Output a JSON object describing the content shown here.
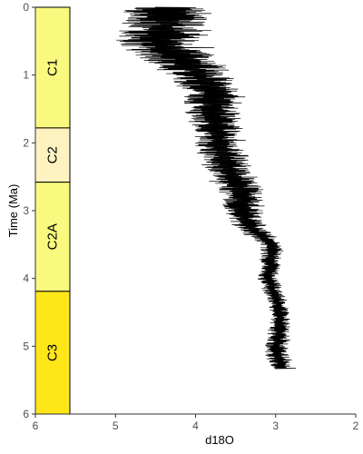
{
  "chart_data": {
    "type": "line",
    "title": "",
    "xlabel": "d18O",
    "ylabel": "Time (Ma)",
    "xlim": [
      6,
      2
    ],
    "ylim": [
      0,
      6
    ],
    "x_reversed": true,
    "y_reversed": true,
    "x_ticks": [
      6,
      5,
      4,
      3,
      2
    ],
    "y_ticks": [
      0,
      1,
      2,
      3,
      4,
      5,
      6
    ],
    "grid": false,
    "legend": "none",
    "line_color": "#000000",
    "chronozones": [
      {
        "name": "C1",
        "start": 0.0,
        "end": 1.78,
        "color": "#F9F97F"
      },
      {
        "name": "C2",
        "start": 1.78,
        "end": 2.58,
        "color": "#FFF2C1"
      },
      {
        "name": "C2A",
        "start": 2.58,
        "end": 4.19,
        "color": "#F9F97F"
      },
      {
        "name": "C3",
        "start": 4.19,
        "end": 6.0,
        "color": "#FFE619"
      }
    ],
    "series": [
      {
        "center": [
          [
            0.0,
            4.3
          ],
          [
            0.25,
            4.35
          ],
          [
            0.5,
            4.45
          ],
          [
            0.75,
            4.2
          ],
          [
            1.0,
            3.95
          ],
          [
            1.25,
            3.8
          ],
          [
            1.5,
            3.8
          ],
          [
            1.75,
            3.75
          ],
          [
            2.0,
            3.7
          ],
          [
            2.25,
            3.65
          ],
          [
            2.5,
            3.55
          ],
          [
            2.75,
            3.4
          ],
          [
            3.0,
            3.4
          ],
          [
            3.2,
            3.35
          ],
          [
            3.5,
            3.05
          ],
          [
            3.75,
            3.05
          ],
          [
            4.0,
            3.1
          ],
          [
            4.25,
            3.0
          ],
          [
            4.5,
            2.95
          ],
          [
            4.75,
            2.95
          ],
          [
            5.0,
            3.0
          ],
          [
            5.25,
            2.95
          ],
          [
            5.33,
            2.9
          ]
        ],
        "halfwidth": [
          [
            0.0,
            0.55
          ],
          [
            0.5,
            0.55
          ],
          [
            1.0,
            0.4
          ],
          [
            1.5,
            0.35
          ],
          [
            2.0,
            0.3
          ],
          [
            2.5,
            0.3
          ],
          [
            3.0,
            0.25
          ],
          [
            3.5,
            0.15
          ],
          [
            4.0,
            0.12
          ],
          [
            4.5,
            0.12
          ],
          [
            5.0,
            0.15
          ],
          [
            5.33,
            0.15
          ]
        ]
      }
    ]
  }
}
